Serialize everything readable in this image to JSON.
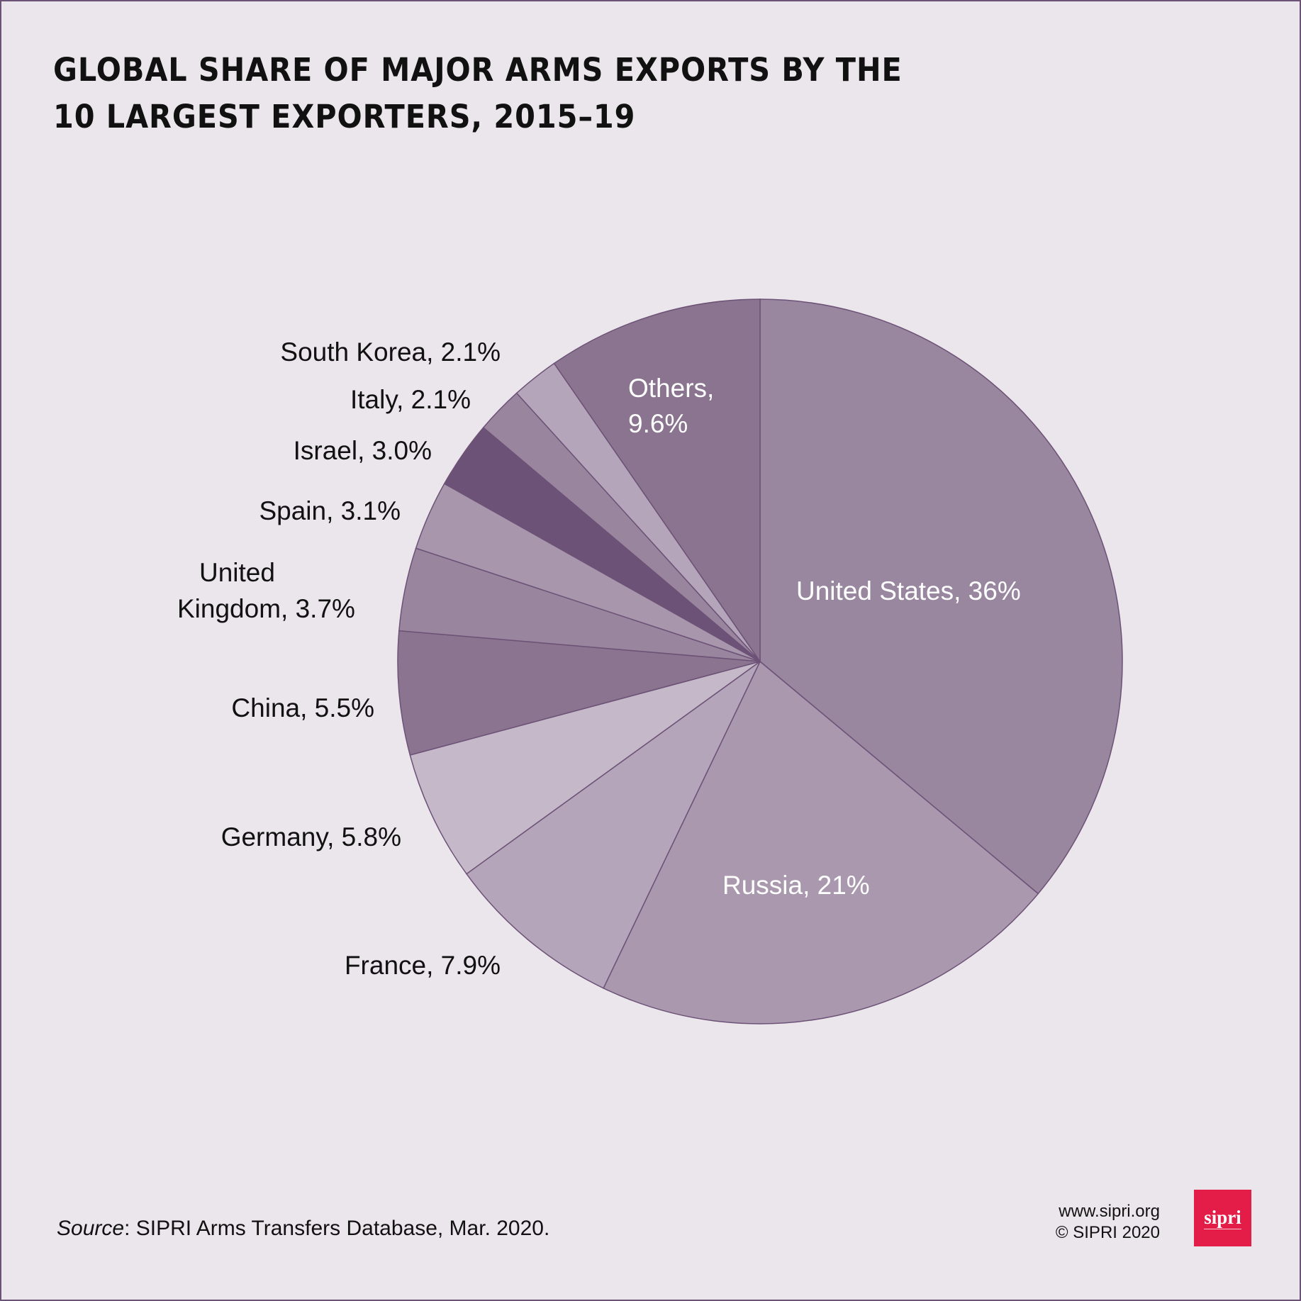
{
  "title_lines": [
    "GLOBAL SHARE OF MAJOR ARMS EXPORTS BY THE",
    "10 LARGEST EXPORTERS, 2015–19"
  ],
  "chart_data": {
    "type": "pie",
    "title": "GLOBAL SHARE OF MAJOR ARMS EXPORTS BY THE 10 LARGEST EXPORTERS, 2015–19",
    "start": "12 o'clock, clockwise",
    "slices": [
      {
        "name": "United States",
        "value": 36,
        "label": "United States, 36%",
        "color": "#99869f",
        "label_inside": true
      },
      {
        "name": "Russia",
        "value": 21,
        "label": "Russia, 21%",
        "color": "#a998ae",
        "label_inside": true
      },
      {
        "name": "France",
        "value": 7.9,
        "label": "France, 7.9%",
        "color": "#b5a5ba"
      },
      {
        "name": "Germany",
        "value": 5.8,
        "label": "Germany, 5.8%",
        "color": "#c5b8c9"
      },
      {
        "name": "China",
        "value": 5.5,
        "label": "China, 5.5%",
        "color": "#8a748f"
      },
      {
        "name": "United Kingdom",
        "value": 3.7,
        "label_lines": [
          "United",
          "Kingdom, 3.7%"
        ],
        "color": "#9a859f"
      },
      {
        "name": "Spain",
        "value": 3.1,
        "label": "Spain, 3.1%",
        "color": "#a896ad"
      },
      {
        "name": "Israel",
        "value": 3.0,
        "label": "Israel, 3.0%",
        "color": "#6d5277"
      },
      {
        "name": "Italy",
        "value": 2.1,
        "label": "Italy, 2.1%",
        "color": "#9a859f"
      },
      {
        "name": "South Korea",
        "value": 2.1,
        "label": "South Korea, 2.1%",
        "color": "#b5a5ba"
      },
      {
        "name": "Others",
        "value": 9.6,
        "label_lines": [
          "Others,",
          "9.6%"
        ],
        "color": "#8a748f",
        "label_inside": true
      }
    ]
  },
  "footer": {
    "source_italic": "Source",
    "source_rest": ": SIPRI Arms Transfers Database, Mar. 2020.",
    "website": "www.sipri.org",
    "copyright": "© SIPRI 2020",
    "logo_text": "sipri",
    "logo_color": "#e31d47"
  }
}
